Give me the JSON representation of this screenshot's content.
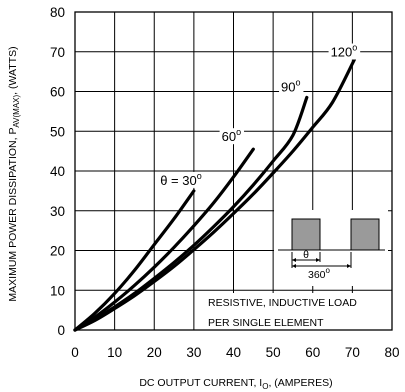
{
  "chart_data": {
    "type": "line",
    "title": "",
    "xlabel": "DC OUTPUT CURRENT, I_O, (AMPERES)",
    "xlabel_parts": {
      "main": "DC OUTPUT CURRENT, I",
      "sub": "O",
      "tail": ", (AMPERES)"
    },
    "ylabel": "MAXIMUM POWER DISSIPATION, P_AV(MAX), (WATTS)",
    "ylabel_parts": {
      "main": "MAXIMUM POWER DISSIPATION, P",
      "sub": "AV(MAX)",
      "tail": ", (WATTS)"
    },
    "xlim": [
      0,
      80
    ],
    "ylim": [
      0,
      80
    ],
    "xticks": [
      0,
      10,
      20,
      30,
      40,
      50,
      60,
      70,
      80
    ],
    "yticks": [
      0,
      10,
      20,
      30,
      40,
      50,
      60,
      70,
      80
    ],
    "grid": true,
    "series": [
      {
        "name": "θ = 30°",
        "label_main": "θ = 30",
        "label_sup": "o",
        "label_at": [
          21.5,
          36.5
        ],
        "x": [
          0,
          5,
          10,
          15,
          20,
          25,
          30
        ],
        "y": [
          0,
          4.2,
          9.2,
          15.0,
          21.5,
          28.0,
          35.0
        ]
      },
      {
        "name": "60°",
        "label_main": "60",
        "label_sup": "o",
        "label_at": [
          37,
          47.5
        ],
        "x": [
          0,
          5,
          10,
          15,
          20,
          25,
          30,
          35,
          40,
          45
        ],
        "y": [
          0,
          3.2,
          7.0,
          11.2,
          15.8,
          20.8,
          26.2,
          32.0,
          38.5,
          45.5
        ]
      },
      {
        "name": "90°",
        "label_main": "90",
        "label_sup": "o",
        "label_at": [
          52,
          60
        ],
        "x": [
          0,
          5,
          10,
          15,
          20,
          25,
          30,
          35,
          40,
          45,
          50,
          55,
          58.5
        ],
        "y": [
          0,
          2.6,
          5.8,
          9.2,
          13.0,
          17.0,
          21.3,
          26.0,
          31.0,
          36.5,
          42.5,
          49.0,
          58.5
        ]
      },
      {
        "name": "120°",
        "label_main": "120",
        "label_sup": "o",
        "label_at": [
          64.5,
          68.8
        ],
        "x": [
          0,
          5,
          10,
          15,
          20,
          25,
          30,
          35,
          40,
          45,
          50,
          55,
          60,
          65,
          70.5
        ],
        "y": [
          0,
          2.4,
          5.4,
          8.6,
          12.2,
          16.0,
          20.2,
          24.6,
          29.3,
          34.2,
          39.5,
          45.0,
          51.0,
          57.3,
          68.0
        ]
      }
    ],
    "annotation": {
      "lines": [
        "RESISTIVE, INDUCTIVE LOAD",
        "PER SINGLE ELEMENT"
      ],
      "pulse_label": "θ",
      "period_label_main": "360",
      "period_label_sup": "o"
    },
    "colors": {
      "axes": "#000000",
      "grid": "#000000",
      "curve": "#000000",
      "pulse_fill": "#9a9a9a",
      "background": "#ffffff"
    }
  }
}
